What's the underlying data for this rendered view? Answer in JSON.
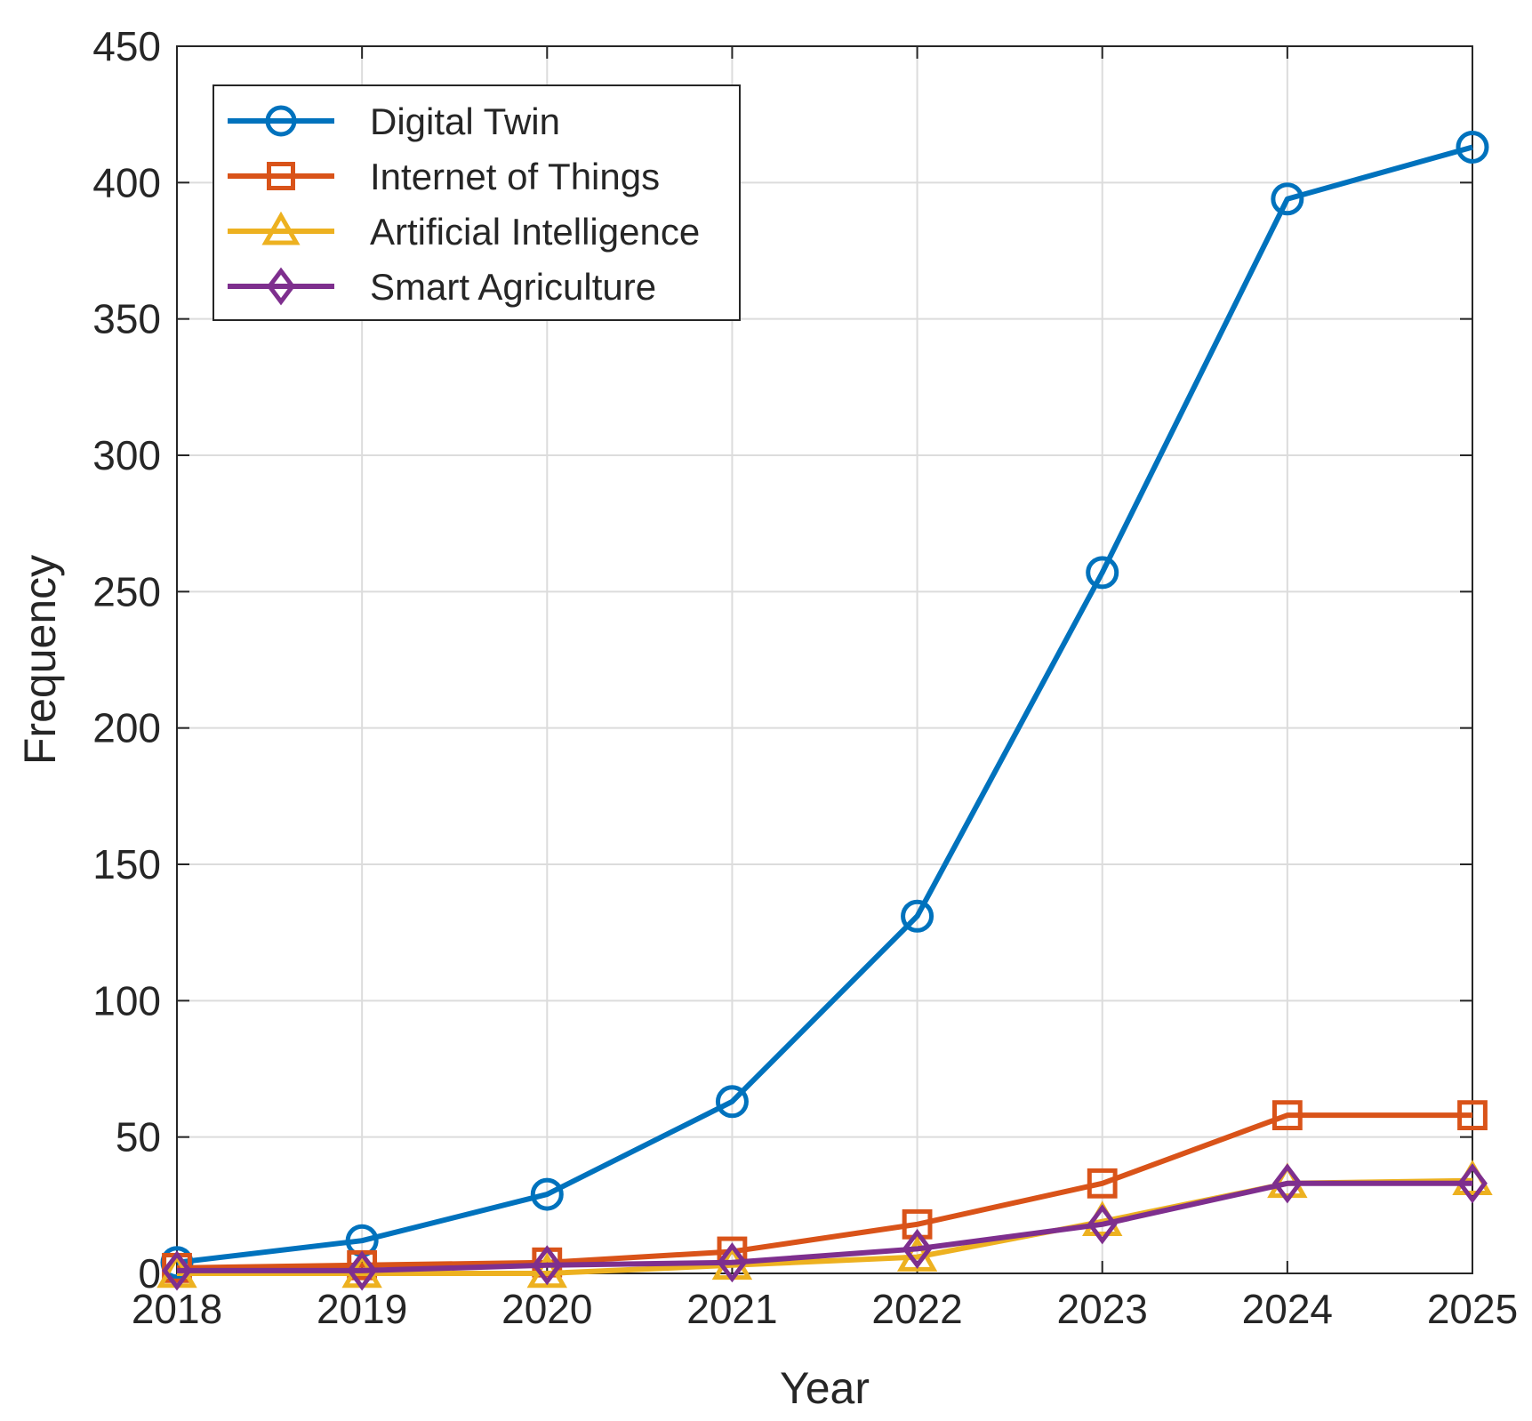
{
  "chart_data": {
    "type": "line",
    "title": "",
    "xlabel": "Year",
    "ylabel": "Frequency",
    "x": [
      2018,
      2019,
      2020,
      2021,
      2022,
      2023,
      2024,
      2025
    ],
    "x_tick_labels": [
      "2018",
      "2019",
      "2020",
      "2021",
      "2022",
      "2023",
      "2024",
      "2025"
    ],
    "xlim": [
      2018,
      2025
    ],
    "ylim": [
      0,
      450
    ],
    "y_ticks": [
      0,
      50,
      100,
      150,
      200,
      250,
      300,
      350,
      400,
      450
    ],
    "y_tick_labels": [
      "0",
      "50",
      "100",
      "150",
      "200",
      "250",
      "300",
      "350",
      "400",
      "450"
    ],
    "grid": true,
    "legend_position": "top-left",
    "series": [
      {
        "name": "Digital Twin",
        "color": "#0072BD",
        "marker": "circle",
        "values": [
          4,
          12,
          29,
          63,
          131,
          257,
          394,
          413
        ]
      },
      {
        "name": "Internet of Things",
        "color": "#D95319",
        "marker": "square",
        "values": [
          2,
          3,
          4,
          8,
          18,
          33,
          58,
          58
        ]
      },
      {
        "name": "Artificial Intelligence",
        "color": "#EDB120",
        "marker": "triangle",
        "values": [
          0,
          0,
          0,
          3,
          6,
          19,
          33,
          34
        ]
      },
      {
        "name": "Smart Agriculture",
        "color": "#7E2F8E",
        "marker": "diamond",
        "values": [
          1,
          1,
          3,
          4,
          9,
          18,
          33,
          33
        ]
      }
    ]
  }
}
